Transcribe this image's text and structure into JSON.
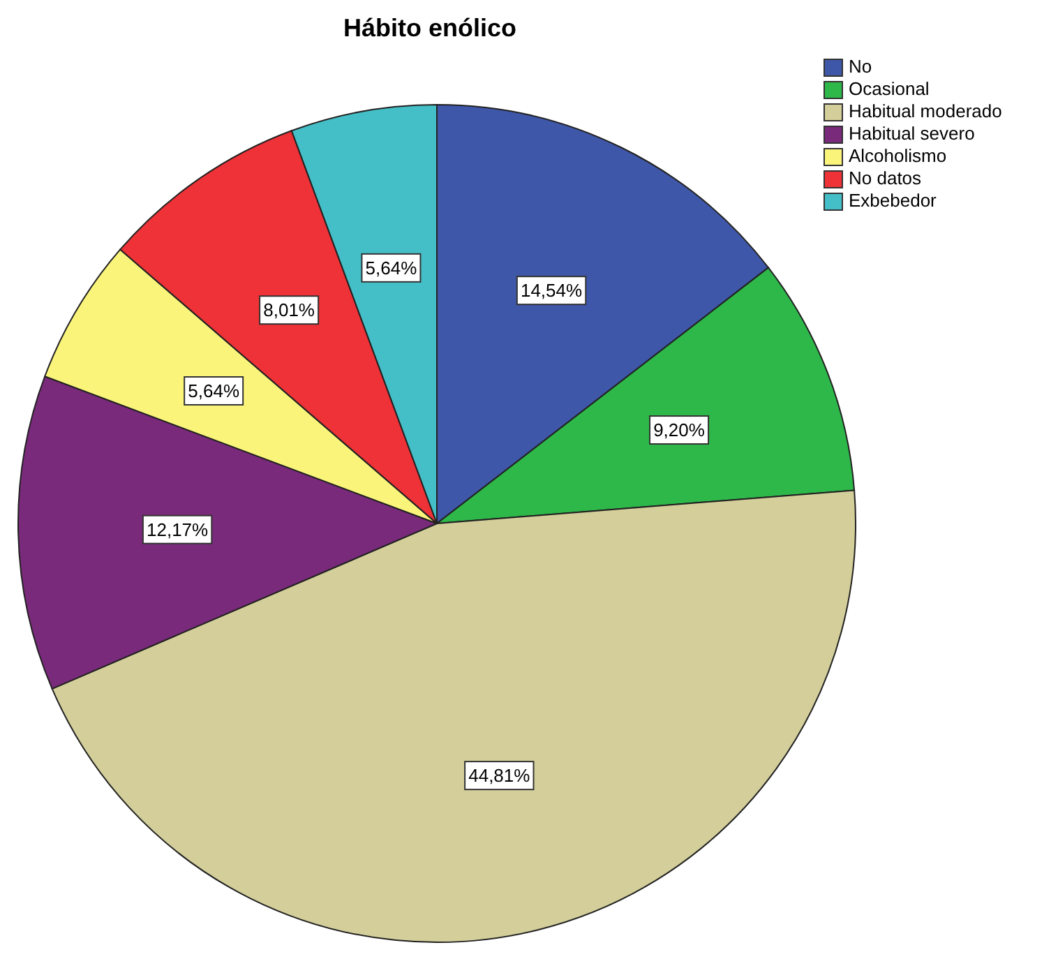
{
  "chart_data": {
    "type": "pie",
    "title": "Hábito enólico",
    "categories": [
      "No",
      "Ocasional",
      "Habitual moderado",
      "Habitual severo",
      "Alcoholismo",
      "No datos",
      "Exbebedor"
    ],
    "values": [
      14.54,
      9.2,
      44.81,
      12.17,
      5.64,
      8.01,
      5.64
    ],
    "colors": [
      "#3f57a8",
      "#2eb84a",
      "#d3ce9a",
      "#7a2a7a",
      "#faf57a",
      "#ee3237",
      "#45bfc7"
    ],
    "value_labels": [
      "14,54%",
      "9,20%",
      "44,81%",
      "12,17%",
      "5,64%",
      "8,01%",
      "5,64%"
    ],
    "legend": "top right"
  }
}
